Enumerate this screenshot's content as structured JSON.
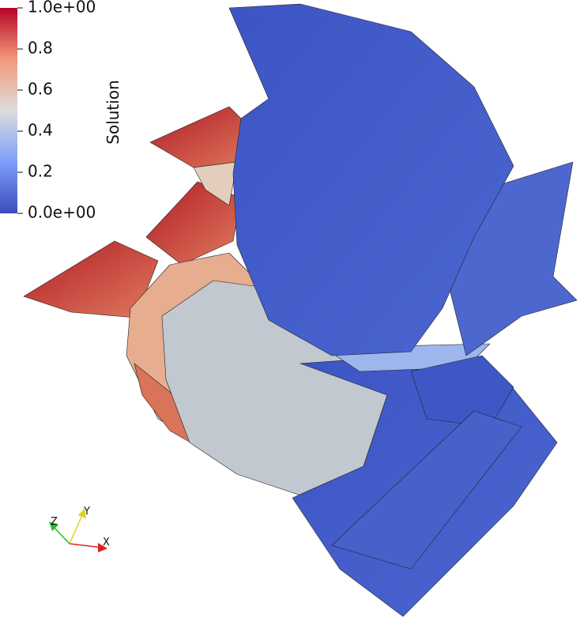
{
  "colorbar": {
    "title": "Solution",
    "range": [
      0,
      1
    ],
    "ticks": [
      {
        "value": 1,
        "label": "1.0e+00"
      },
      {
        "value": 0.8,
        "label": "0.8"
      },
      {
        "value": 0.6,
        "label": "0.6"
      },
      {
        "value": 0.4,
        "label": "0.4"
      },
      {
        "value": 0.2,
        "label": "0.2"
      },
      {
        "value": 0,
        "label": "0.0e+00"
      }
    ]
  },
  "axes": {
    "x": "X",
    "y": "Y",
    "z": "Z"
  }
}
